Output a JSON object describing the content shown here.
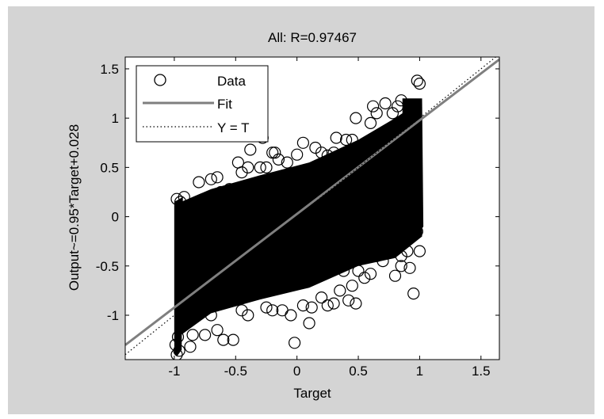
{
  "chart_data": {
    "type": "scatter",
    "title": "All: R=0.97467",
    "xlabel": "Target",
    "ylabel": "Output~=0.95*Target+0.028",
    "xlim": [
      -1.4,
      1.65
    ],
    "ylim": [
      -1.45,
      1.62
    ],
    "xticks": [
      -1,
      -0.5,
      0,
      0.5,
      1,
      1.5
    ],
    "xtick_labels": [
      "-1",
      "-0.5",
      "0",
      "0.5",
      "1",
      "1.5"
    ],
    "yticks": [
      -1,
      -0.5,
      0,
      0.5,
      1,
      1.5
    ],
    "ytick_labels": [
      "-1",
      "-0.5",
      "0",
      "0.5",
      "1",
      "1.5"
    ],
    "grid": false,
    "legend": {
      "position": "top-left",
      "entries": [
        {
          "label": "Data",
          "marker": "circle"
        },
        {
          "label": "Fit",
          "style": "solid-line"
        },
        {
          "label": "Y = T",
          "style": "dotted-line"
        }
      ]
    },
    "fit": {
      "slope": 0.95,
      "intercept": 0.028,
      "color": "#7f7f7f"
    },
    "identity_line": {
      "slope": 1,
      "intercept": 0,
      "color": "#000000"
    },
    "data_cloud": {
      "x_range": [
        -1,
        1.02
      ],
      "description": "dense scatter around fit line, strongly filled"
    },
    "series": [
      {
        "name": "Data",
        "points": [
          [
            -0.98,
            -1.4
          ],
          [
            -0.96,
            -1.36
          ],
          [
            -0.99,
            -1.3
          ],
          [
            -0.97,
            -1.22
          ],
          [
            -0.95,
            -1.12
          ],
          [
            -0.98,
            0.18
          ],
          [
            -0.95,
            0.15
          ],
          [
            -0.92,
            0.2
          ],
          [
            -0.8,
            0.35
          ],
          [
            -0.7,
            0.38
          ],
          [
            -0.62,
            0.25
          ],
          [
            -0.6,
            -1.25
          ],
          [
            -0.75,
            -1.2
          ],
          [
            -0.87,
            -1.32
          ],
          [
            -0.85,
            -1.2
          ],
          [
            -0.55,
            0.28
          ],
          [
            -0.45,
            0.45
          ],
          [
            -0.4,
            0.5
          ],
          [
            -0.38,
            0.68
          ],
          [
            -0.3,
            0.5
          ],
          [
            -0.25,
            0.5
          ],
          [
            -0.2,
            0.65
          ],
          [
            -0.15,
            0.58
          ],
          [
            -0.08,
            0.55
          ],
          [
            0.0,
            0.63
          ],
          [
            0.05,
            0.75
          ],
          [
            0.15,
            0.7
          ],
          [
            0.25,
            0.62
          ],
          [
            0.3,
            0.65
          ],
          [
            0.4,
            0.78
          ],
          [
            0.45,
            0.78
          ],
          [
            0.48,
            1.0
          ],
          [
            0.6,
            0.95
          ],
          [
            0.65,
            1.05
          ],
          [
            0.72,
            1.15
          ],
          [
            0.82,
            1.12
          ],
          [
            0.85,
            1.18
          ],
          [
            0.98,
            1.38
          ],
          [
            1.0,
            1.35
          ],
          [
            -0.35,
            0.25
          ],
          [
            -0.28,
            0.8
          ],
          [
            -0.12,
            -0.95
          ],
          [
            -0.05,
            -1.0
          ],
          [
            0.05,
            -0.9
          ],
          [
            -0.45,
            -0.95
          ],
          [
            -0.4,
            -1.0
          ],
          [
            -0.52,
            -1.25
          ],
          [
            -0.25,
            -0.92
          ],
          [
            -0.2,
            -0.95
          ],
          [
            0.2,
            -0.82
          ],
          [
            0.25,
            -0.9
          ],
          [
            0.3,
            -0.88
          ],
          [
            0.35,
            -0.75
          ],
          [
            0.38,
            -0.55
          ],
          [
            0.45,
            -0.7
          ],
          [
            0.42,
            -0.85
          ],
          [
            0.55,
            -0.62
          ],
          [
            0.6,
            -0.58
          ],
          [
            0.65,
            -0.4
          ],
          [
            0.7,
            -0.45
          ],
          [
            0.8,
            -0.6
          ],
          [
            0.85,
            -0.5
          ],
          [
            0.9,
            -0.35
          ],
          [
            0.95,
            -0.78
          ],
          [
            0.92,
            -0.52
          ],
          [
            1.0,
            -0.35
          ],
          [
            0.98,
            -0.15
          ],
          [
            0.1,
            -1.08
          ],
          [
            -0.02,
            -1.28
          ],
          [
            0.12,
            -0.92
          ],
          [
            0.48,
            -0.88
          ],
          [
            0.5,
            -0.55
          ],
          [
            0.75,
            -0.25
          ],
          [
            0.85,
            -0.4
          ],
          [
            -0.7,
            -1.0
          ],
          [
            -0.78,
            -0.95
          ],
          [
            -0.9,
            -1.05
          ],
          [
            -0.65,
            -1.15
          ],
          [
            -0.92,
            -0.35
          ],
          [
            -0.88,
            -0.15
          ],
          [
            0.32,
            0.8
          ],
          [
            0.62,
            1.12
          ],
          [
            0.78,
            1.05
          ],
          [
            -0.65,
            0.4
          ],
          [
            -0.48,
            0.55
          ],
          [
            -0.18,
            0.65
          ],
          [
            0.2,
            0.65
          ]
        ]
      }
    ]
  }
}
